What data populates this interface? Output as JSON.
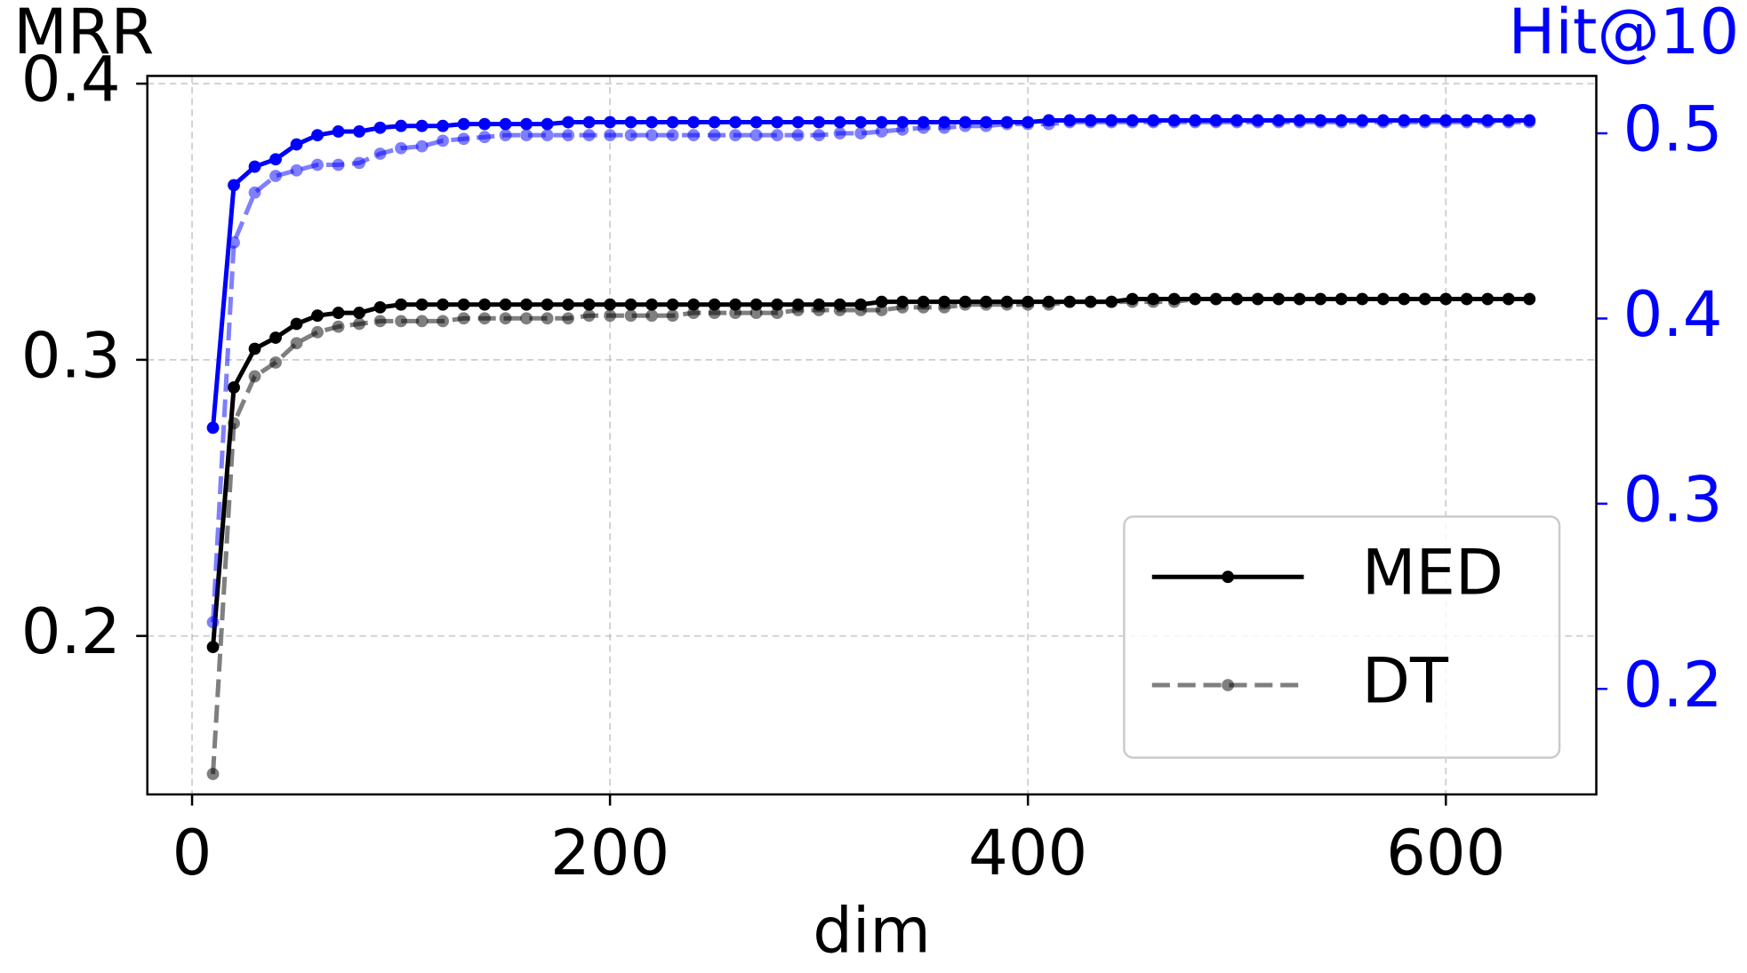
{
  "chart_data": {
    "type": "line",
    "ylabel": "MRR",
    "y2label": "Hit@10",
    "xlabel": "dim",
    "x": [
      10,
      20,
      30,
      40,
      50,
      60,
      70,
      80,
      90,
      100,
      110,
      120,
      130,
      140,
      150,
      160,
      170,
      180,
      190,
      200,
      210,
      220,
      230,
      240,
      250,
      260,
      270,
      280,
      290,
      300,
      310,
      320,
      330,
      340,
      350,
      360,
      370,
      380,
      390,
      400,
      410,
      420,
      430,
      440,
      450,
      460,
      470,
      480,
      490,
      500,
      510,
      520,
      530,
      540,
      550,
      560,
      570,
      580,
      590,
      600,
      610,
      620,
      630,
      640
    ],
    "series": [
      {
        "name": "MED",
        "color": "#000000",
        "linestyle": "solid",
        "alpha": 1,
        "axis": "y",
        "values": [
          0.196,
          0.29,
          0.304,
          0.308,
          0.313,
          0.316,
          0.317,
          0.317,
          0.319,
          0.32,
          0.32,
          0.32,
          0.32,
          0.32,
          0.32,
          0.32,
          0.32,
          0.32,
          0.32,
          0.32,
          0.32,
          0.32,
          0.32,
          0.32,
          0.32,
          0.32,
          0.32,
          0.32,
          0.32,
          0.32,
          0.32,
          0.32,
          0.321,
          0.321,
          0.321,
          0.321,
          0.321,
          0.321,
          0.321,
          0.321,
          0.321,
          0.321,
          0.321,
          0.321,
          0.322,
          0.322,
          0.322,
          0.322,
          0.322,
          0.322,
          0.322,
          0.322,
          0.322,
          0.322,
          0.322,
          0.322,
          0.322,
          0.322,
          0.322,
          0.322,
          0.322,
          0.322,
          0.322,
          0.322
        ]
      },
      {
        "name": "DT",
        "color": "#000000",
        "linestyle": "dashed",
        "alpha": 0.5,
        "axis": "y",
        "values": [
          0.15,
          0.277,
          0.294,
          0.299,
          0.306,
          0.31,
          0.312,
          0.313,
          0.314,
          0.314,
          0.314,
          0.314,
          0.315,
          0.315,
          0.315,
          0.315,
          0.315,
          0.315,
          0.316,
          0.316,
          0.316,
          0.316,
          0.316,
          0.317,
          0.317,
          0.317,
          0.317,
          0.317,
          0.318,
          0.318,
          0.318,
          0.318,
          0.318,
          0.319,
          0.319,
          0.319,
          0.32,
          0.32,
          0.32,
          0.32,
          0.32,
          0.321,
          0.321,
          0.321,
          0.321,
          0.321,
          0.321,
          0.322,
          0.322,
          0.322,
          0.322,
          0.322,
          0.322,
          0.322,
          0.322,
          0.322,
          0.322,
          0.322,
          0.322,
          0.322,
          0.322,
          0.322,
          0.322,
          0.322
        ]
      },
      {
        "color": "#0000ff",
        "linestyle": "solid",
        "alpha": 1,
        "axis": "y2",
        "values": [
          0.341,
          0.472,
          0.482,
          0.486,
          0.494,
          0.499,
          0.501,
          0.501,
          0.503,
          0.504,
          0.504,
          0.504,
          0.505,
          0.505,
          0.505,
          0.505,
          0.505,
          0.506,
          0.506,
          0.506,
          0.506,
          0.506,
          0.506,
          0.506,
          0.506,
          0.506,
          0.506,
          0.506,
          0.506,
          0.506,
          0.506,
          0.506,
          0.506,
          0.506,
          0.506,
          0.506,
          0.506,
          0.506,
          0.506,
          0.506,
          0.507,
          0.507,
          0.507,
          0.507,
          0.507,
          0.507,
          0.507,
          0.507,
          0.507,
          0.507,
          0.507,
          0.507,
          0.507,
          0.507,
          0.507,
          0.507,
          0.507,
          0.507,
          0.507,
          0.507,
          0.507,
          0.507,
          0.507,
          0.507
        ]
      },
      {
        "color": "#0000ff",
        "linestyle": "dashed",
        "alpha": 0.5,
        "axis": "y2",
        "values": [
          0.236,
          0.441,
          0.468,
          0.477,
          0.48,
          0.483,
          0.483,
          0.484,
          0.489,
          0.492,
          0.493,
          0.496,
          0.497,
          0.498,
          0.499,
          0.499,
          0.499,
          0.499,
          0.499,
          0.499,
          0.499,
          0.499,
          0.499,
          0.499,
          0.499,
          0.499,
          0.499,
          0.499,
          0.499,
          0.499,
          0.5,
          0.5,
          0.501,
          0.502,
          0.503,
          0.503,
          0.504,
          0.504,
          0.505,
          0.505,
          0.505,
          0.506,
          0.506,
          0.506,
          0.506,
          0.506,
          0.506,
          0.506,
          0.506,
          0.506,
          0.506,
          0.506,
          0.506,
          0.506,
          0.506,
          0.506,
          0.506,
          0.506,
          0.506,
          0.506,
          0.506,
          0.506,
          0.506,
          0.506
        ]
      }
    ],
    "xlim": [
      -21.4,
      672
    ],
    "xticks": [
      0,
      200,
      400,
      600
    ],
    "ylim": [
      0.1426,
      0.4028
    ],
    "yticks": [
      0.2,
      0.3,
      0.4
    ],
    "y2lim": [
      0.143,
      0.531
    ],
    "y2ticks": [
      0.2,
      0.3,
      0.4,
      0.5
    ],
    "y2_color": "#0000ff",
    "grid": true,
    "legend": "lower right"
  }
}
